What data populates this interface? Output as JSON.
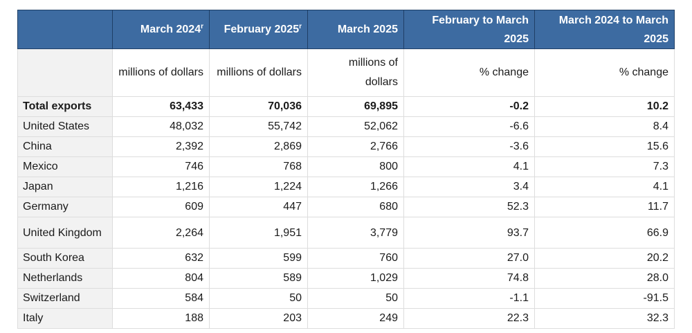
{
  "headers": {
    "col1": "March 2024",
    "col1_sup": "r",
    "col2": "February 2025",
    "col2_sup": "r",
    "col3": "March 2025",
    "col4": "February to March 2025",
    "col5": "March 2024 to March 2025"
  },
  "units": {
    "col1": "millions of dollars",
    "col2": "millions of dollars",
    "col3": "millions of dollars",
    "col4": "% change",
    "col5": "% change"
  },
  "rows": [
    {
      "name": "Total exports",
      "mar2024": "63,433",
      "feb2025": "70,036",
      "mar2025": "69,895",
      "feb_mar": "-0.2",
      "yoy": "10.2"
    },
    {
      "name": "United States",
      "mar2024": "48,032",
      "feb2025": "55,742",
      "mar2025": "52,062",
      "feb_mar": "-6.6",
      "yoy": "8.4"
    },
    {
      "name": "China",
      "mar2024": "2,392",
      "feb2025": "2,869",
      "mar2025": "2,766",
      "feb_mar": "-3.6",
      "yoy": "15.6"
    },
    {
      "name": "Mexico",
      "mar2024": "746",
      "feb2025": "768",
      "mar2025": "800",
      "feb_mar": "4.1",
      "yoy": "7.3"
    },
    {
      "name": "Japan",
      "mar2024": "1,216",
      "feb2025": "1,224",
      "mar2025": "1,266",
      "feb_mar": "3.4",
      "yoy": "4.1"
    },
    {
      "name": "Germany",
      "mar2024": "609",
      "feb2025": "447",
      "mar2025": "680",
      "feb_mar": "52.3",
      "yoy": "11.7"
    },
    {
      "name": "United Kingdom",
      "mar2024": "2,264",
      "feb2025": "1,951",
      "mar2025": "3,779",
      "feb_mar": "93.7",
      "yoy": "66.9"
    },
    {
      "name": "South Korea",
      "mar2024": "632",
      "feb2025": "599",
      "mar2025": "760",
      "feb_mar": "27.0",
      "yoy": "20.2"
    },
    {
      "name": "Netherlands",
      "mar2024": "804",
      "feb2025": "589",
      "mar2025": "1,029",
      "feb_mar": "74.8",
      "yoy": "28.0"
    },
    {
      "name": "Switzerland",
      "mar2024": "584",
      "feb2025": "50",
      "mar2025": "50",
      "feb_mar": "-1.1",
      "yoy": "-91.5"
    },
    {
      "name": "Italy",
      "mar2024": "188",
      "feb2025": "203",
      "mar2025": "249",
      "feb_mar": "22.3",
      "yoy": "32.3"
    }
  ]
}
